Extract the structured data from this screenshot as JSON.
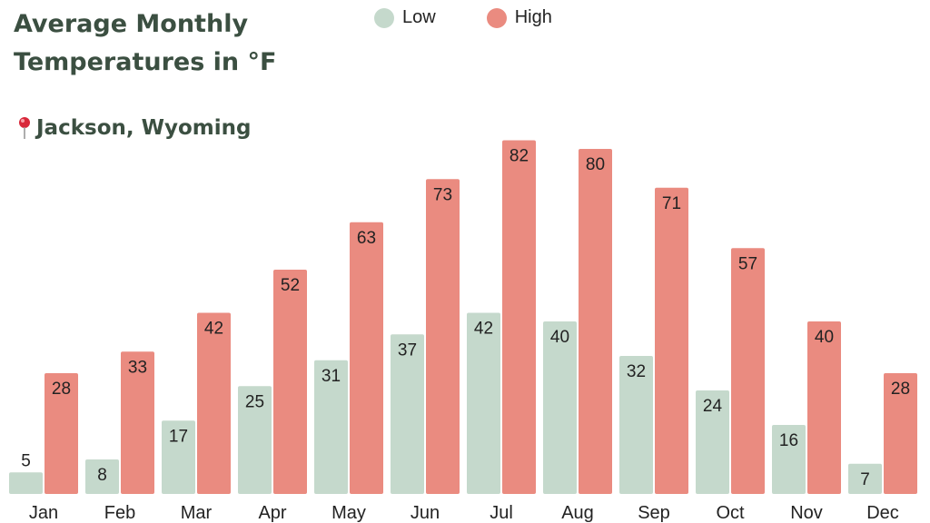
{
  "title": "Average Monthly Temperatures in °F",
  "location": "Jackson, Wyoming",
  "location_icon": "map-pin-icon",
  "colors": {
    "low": "#c5d9cc",
    "high": "#ea8b80",
    "title": "#3b4f41"
  },
  "chart_data": {
    "type": "bar",
    "categories": [
      "Jan",
      "Feb",
      "Mar",
      "Apr",
      "May",
      "Jun",
      "Jul",
      "Aug",
      "Sep",
      "Oct",
      "Nov",
      "Dec"
    ],
    "series": [
      {
        "name": "Low",
        "values": [
          5,
          8,
          17,
          25,
          31,
          37,
          42,
          40,
          32,
          24,
          16,
          7
        ]
      },
      {
        "name": "High",
        "values": [
          28,
          33,
          42,
          52,
          63,
          73,
          82,
          80,
          71,
          57,
          40,
          28
        ]
      }
    ],
    "title": "Average Monthly Temperatures in °F",
    "legend_position": "top-center",
    "grid": false,
    "data_labels": true
  }
}
